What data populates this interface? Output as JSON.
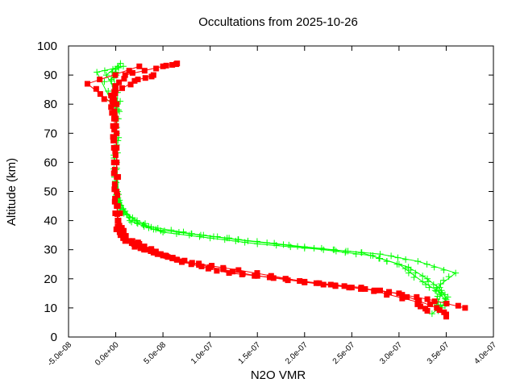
{
  "chart_data": {
    "type": "scatter",
    "title": "Occultations from 2025-10-26",
    "xlabel": "N2O VMR",
    "ylabel": "Altitude (km)",
    "xlim": [
      -5e-08,
      4e-07
    ],
    "ylim": [
      0,
      100
    ],
    "xticks": [
      "-5.0e-08",
      "0.0e+00",
      "5.0e-08",
      "1.0e-07",
      "1.5e-07",
      "2.0e-07",
      "2.5e-07",
      "3.0e-07",
      "3.5e-07",
      "4.0e-07"
    ],
    "yticks": [
      "0",
      "10",
      "20",
      "30",
      "40",
      "50",
      "60",
      "70",
      "80",
      "90",
      "100"
    ],
    "grid": false,
    "legend": "none",
    "series": [
      {
        "color": "#00ff00",
        "marker": "plus",
        "profiles": [
          [
            [
              3.45e-07,
              10
            ],
            [
              3.5e-07,
              13
            ],
            [
              3.45e-07,
              16
            ],
            [
              3.3e-07,
              20
            ],
            [
              3.1e-07,
              24
            ],
            [
              2.7e-07,
              28
            ],
            [
              2.2e-07,
              30
            ],
            [
              1.5e-07,
              32
            ],
            [
              1e-07,
              34
            ],
            [
              5e-08,
              36
            ],
            [
              3e-08,
              38
            ],
            [
              1.5e-08,
              40
            ],
            [
              5e-09,
              45
            ],
            [
              2e-09,
              50
            ],
            [
              1e-09,
              60
            ],
            [
              1e-09,
              70
            ],
            [
              1e-09,
              80
            ],
            [
              -5e-09,
              88
            ],
            [
              0,
              92
            ]
          ],
          [
            [
              3.35e-07,
              8
            ],
            [
              3.5e-07,
              12
            ],
            [
              3.4e-07,
              17
            ],
            [
              3.6e-07,
              22
            ],
            [
              3.2e-07,
              26
            ],
            [
              2.8e-07,
              28.5
            ],
            [
              2.1e-07,
              30.5
            ],
            [
              1.4e-07,
              33
            ],
            [
              9e-08,
              35
            ],
            [
              4e-08,
              37
            ],
            [
              2e-08,
              40
            ],
            [
              8e-09,
              44
            ],
            [
              3e-09,
              49
            ],
            [
              1e-09,
              58
            ],
            [
              1e-09,
              72
            ],
            [
              2e-09,
              84
            ],
            [
              -1e-08,
              90
            ],
            [
              5e-09,
              94
            ]
          ],
          [
            [
              3.4e-07,
              11
            ],
            [
              3.45e-07,
              15
            ],
            [
              3.25e-07,
              19
            ],
            [
              3e-07,
              25
            ],
            [
              2.6e-07,
              29
            ],
            [
              2e-07,
              31
            ],
            [
              1.3e-07,
              33.5
            ],
            [
              8e-08,
              35.5
            ],
            [
              3.5e-08,
              38
            ],
            [
              1.2e-08,
              42
            ],
            [
              4e-09,
              47
            ],
            [
              1e-09,
              55
            ],
            [
              1e-09,
              66
            ],
            [
              0,
              78
            ],
            [
              -2e-08,
              91
            ],
            [
              8e-09,
              93
            ]
          ]
        ]
      },
      {
        "color": "#ff0000",
        "marker": "square",
        "profiles": [
          [
            [
              3.5e-07,
              7
            ],
            [
              3.4e-07,
              10
            ],
            [
              3e-07,
              15
            ],
            [
              2.5e-07,
              17
            ],
            [
              1.8e-07,
              20
            ],
            [
              1.2e-07,
              22
            ],
            [
              8e-08,
              25
            ],
            [
              5e-08,
              28
            ],
            [
              3e-08,
              30
            ],
            [
              1e-08,
              33
            ],
            [
              2e-09,
              40
            ],
            [
              1e-09,
              50
            ],
            [
              1e-09,
              70
            ],
            [
              1e-09,
              80
            ],
            [
              0,
              85
            ],
            [
              1e-08,
              90
            ],
            [
              5e-08,
              93
            ],
            [
              6.5e-08,
              94
            ]
          ],
          [
            [
              3.7e-07,
              10
            ],
            [
              3.3e-07,
              13
            ],
            [
              2.8e-07,
              16
            ],
            [
              2.2e-07,
              18
            ],
            [
              1.5e-07,
              21
            ],
            [
              1e-07,
              24
            ],
            [
              6e-08,
              27
            ],
            [
              4e-08,
              29
            ],
            [
              2e-08,
              31
            ],
            [
              5e-09,
              35
            ],
            [
              1e-09,
              45
            ],
            [
              1e-09,
              60
            ],
            [
              0,
              75
            ],
            [
              -5e-09,
              83
            ],
            [
              2e-08,
              88
            ],
            [
              4e-08,
              90
            ]
          ],
          [
            [
              3.3e-07,
              9
            ],
            [
              3.2e-07,
              12
            ],
            [
              2.6e-07,
              17
            ],
            [
              2e-07,
              19
            ],
            [
              1.3e-07,
              23
            ],
            [
              7e-08,
              26
            ],
            [
              4.5e-08,
              28.5
            ],
            [
              2.5e-08,
              32
            ],
            [
              8e-09,
              34
            ],
            [
              2e-09,
              38
            ],
            [
              1e-09,
              55
            ],
            [
              1e-09,
              65
            ],
            [
              -3e-09,
              80
            ],
            [
              -3e-08,
              87
            ],
            [
              2.5e-08,
              93
            ]
          ]
        ]
      }
    ]
  }
}
